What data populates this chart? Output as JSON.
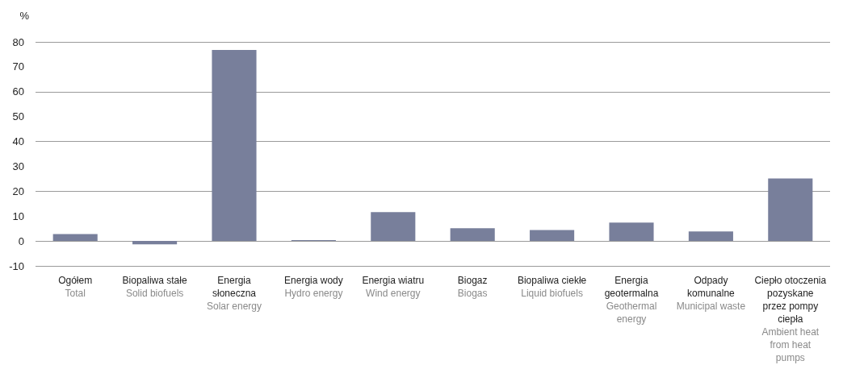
{
  "chart_data": {
    "type": "bar",
    "ylabel": "%",
    "categories": [
      "Ogółem\nTotal",
      "Biopaliwa stałe\nSolid biofuels",
      "Energia słoneczna\nSolar energy",
      "Energia wody\nHydro energy",
      "Energia wiatru\nWind energy",
      "Biogaz\nBiogas",
      "Biopaliwa ciekłe\nLiquid biofuels",
      "Energia geotermalna\nGeothermal energy",
      "Odpady komunalne\nMunicipal waste",
      "Ciepło otoczenia pozyskane przez pompy ciepła\nAmbient heat from heat pumps"
    ],
    "values": [
      2.8,
      -1.3,
      76.8,
      0.4,
      11.6,
      5.1,
      4.4,
      7.4,
      3.8,
      25.1
    ],
    "color": "#787f9b",
    "ylim": [
      -10,
      80
    ],
    "yticks": [
      -10,
      0,
      10,
      20,
      30,
      40,
      50,
      60,
      70,
      80
    ],
    "grid": "y"
  }
}
